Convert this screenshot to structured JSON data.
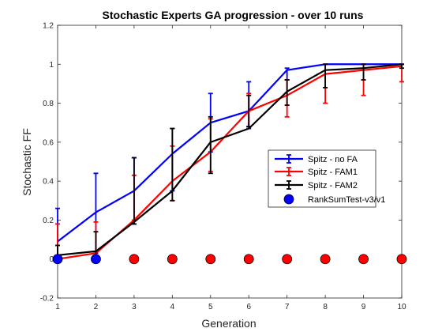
{
  "chart_data": {
    "type": "line",
    "title": "Stochastic Experts GA progression - over 10 runs",
    "xlabel": "Generation",
    "ylabel": "Stochastic FF",
    "xlim": [
      1,
      10
    ],
    "ylim": [
      -0.2,
      1.2
    ],
    "x": [
      1,
      2,
      3,
      4,
      5,
      6,
      7,
      8,
      9,
      10
    ],
    "xticks": [
      "1",
      "2",
      "3",
      "4",
      "5",
      "6",
      "7",
      "8",
      "9",
      "10"
    ],
    "yticks": [
      "-0.2",
      "0",
      "0.2",
      "0.4",
      "0.6",
      "0.8",
      "1",
      "1.2"
    ],
    "legend_position": "center-right",
    "series": [
      {
        "name": "Spitz - no FA",
        "color": "#0000ff",
        "values": [
          0.09,
          0.24,
          0.35,
          0.54,
          0.7,
          0.76,
          0.97,
          1.0,
          1.0,
          1.0
        ],
        "err_lo": [
          0.02,
          0.03,
          0.18,
          0.35,
          0.55,
          0.67,
          0.92,
          1.0,
          1.0,
          1.0
        ],
        "err_hi": [
          0.26,
          0.44,
          0.52,
          0.67,
          0.85,
          0.91,
          0.98,
          1.0,
          1.0,
          1.0
        ]
      },
      {
        "name": "Spitz - FAM1",
        "color": "#ff0000",
        "values": [
          0.0,
          0.03,
          0.2,
          0.4,
          0.55,
          0.76,
          0.84,
          0.95,
          0.97,
          0.99
        ],
        "err_lo": [
          0.0,
          0.0,
          0.2,
          0.3,
          0.45,
          0.68,
          0.73,
          0.8,
          0.84,
          0.91
        ],
        "err_hi": [
          0.18,
          0.19,
          0.43,
          0.58,
          0.72,
          0.85,
          0.92,
          1.0,
          1.0,
          1.0
        ]
      },
      {
        "name": "Spitz - FAM2",
        "color": "#000000",
        "values": [
          0.02,
          0.04,
          0.19,
          0.35,
          0.6,
          0.67,
          0.86,
          0.97,
          0.98,
          1.0
        ],
        "err_lo": [
          0.0,
          0.0,
          0.18,
          0.3,
          0.44,
          0.68,
          0.79,
          0.88,
          0.92,
          0.98
        ],
        "err_hi": [
          0.07,
          0.14,
          0.52,
          0.67,
          0.73,
          0.84,
          0.92,
          1.0,
          1.0,
          1.0
        ]
      }
    ],
    "rank_sum_test": {
      "name": "RankSumTest-v3/v1",
      "y": 0,
      "significant_color": "#0000ff",
      "not_significant_color": "#ff0000",
      "significant": [
        true,
        true,
        false,
        false,
        false,
        false,
        false,
        false,
        false,
        false
      ]
    }
  }
}
